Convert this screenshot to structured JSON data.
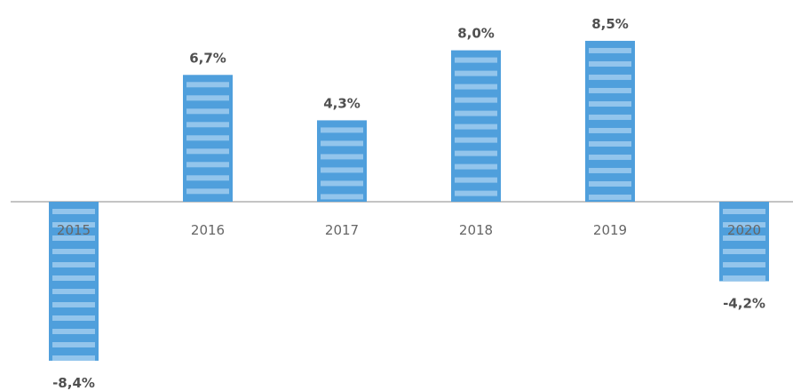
{
  "colors": {
    "bar": "#4f9fdc",
    "bar_stripe": "#a9d2f2",
    "baseline": "#c4c4c4",
    "label": "#505050",
    "tick": "#666666"
  },
  "chart_data": {
    "type": "bar",
    "categories": [
      "2015",
      "2016",
      "2017",
      "2018",
      "2019",
      "2020"
    ],
    "values": [
      -8.4,
      6.7,
      4.3,
      8.0,
      8.5,
      -4.2
    ],
    "data_labels": [
      "-8,4%",
      "6,7%",
      "4,3%",
      "8,0%",
      "8,5%",
      "-4,2%"
    ],
    "title": "",
    "xlabel": "",
    "ylabel": "",
    "ylim": [
      -8.4,
      8.5
    ],
    "grid": false,
    "legend": "none"
  }
}
